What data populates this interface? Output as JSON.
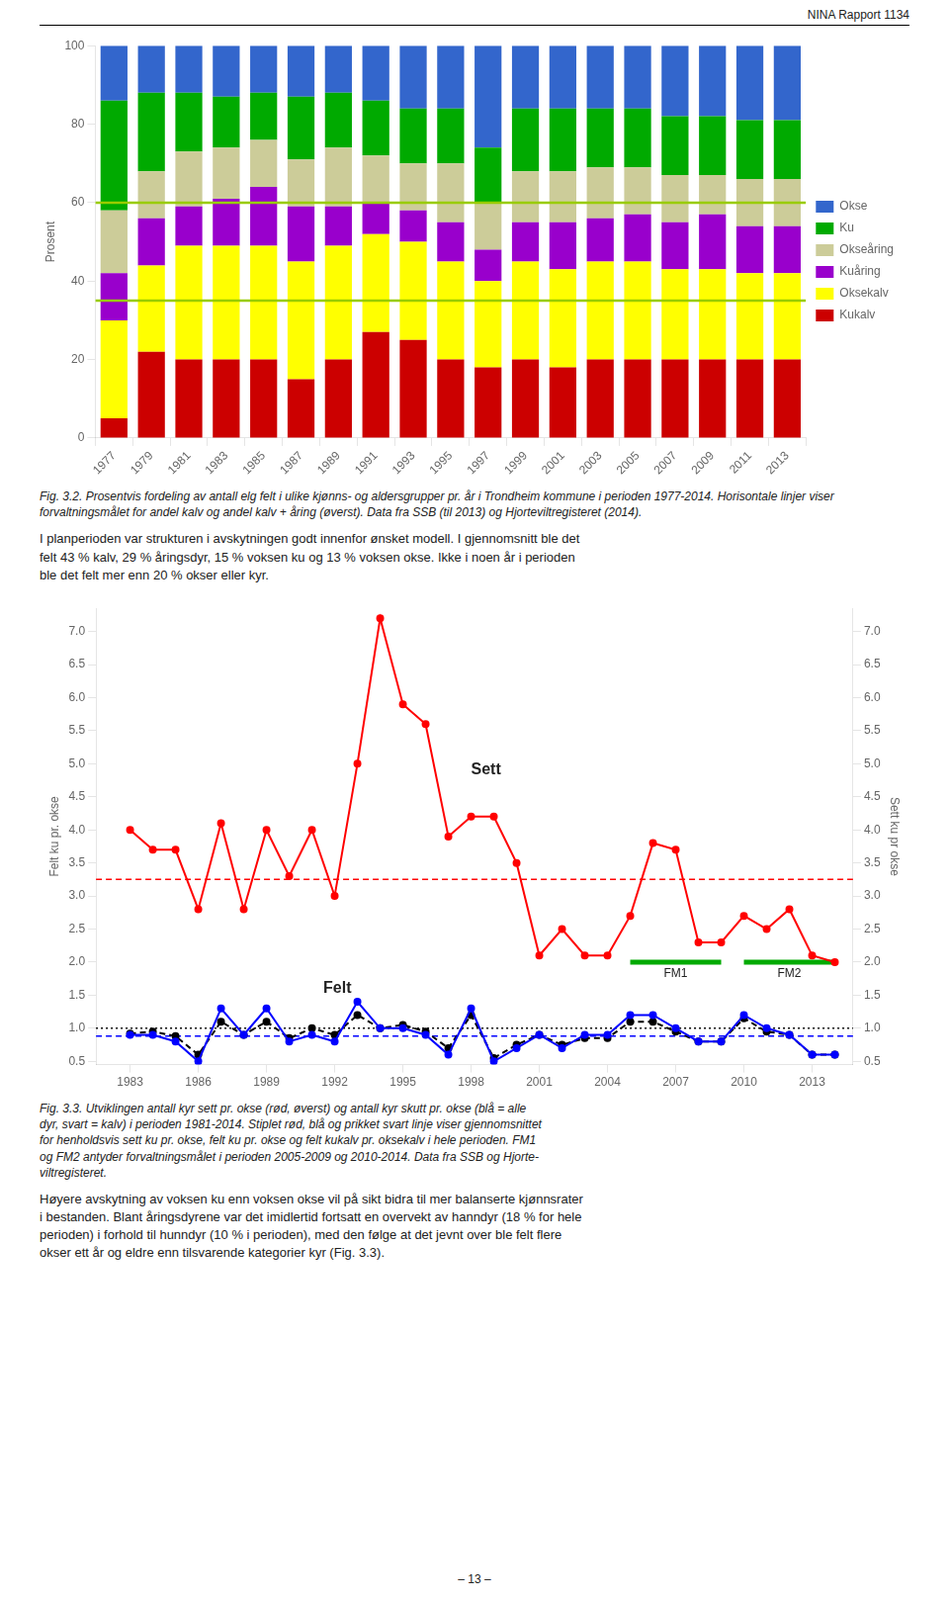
{
  "header": "NINA Rapport 1134",
  "chart_data": [
    {
      "type": "bar",
      "stacked": true,
      "categories": [
        "1977",
        "1979",
        "1981",
        "1983",
        "1985",
        "1987",
        "1989",
        "1991",
        "1993",
        "1995",
        "1997",
        "1999",
        "2001",
        "2003",
        "2005",
        "2007",
        "2009",
        "2011",
        "2013"
      ],
      "series": [
        {
          "name": "Kukalv",
          "color": "#cc0000",
          "values": [
            5,
            22,
            20,
            20,
            20,
            15,
            20,
            27,
            25,
            20,
            18,
            20,
            18,
            20,
            20,
            20,
            20,
            20,
            20
          ]
        },
        {
          "name": "Oksekalv",
          "color": "#ffff00",
          "values": [
            25,
            22,
            29,
            29,
            29,
            30,
            29,
            25,
            25,
            25,
            22,
            25,
            25,
            25,
            25,
            23,
            23,
            22,
            22
          ]
        },
        {
          "name": "Kuåring",
          "color": "#9900cc",
          "values": [
            12,
            12,
            10,
            12,
            15,
            14,
            10,
            8,
            8,
            10,
            8,
            10,
            12,
            11,
            12,
            12,
            14,
            12,
            12
          ]
        },
        {
          "name": "Okseåring",
          "color": "#cccc99",
          "values": [
            16,
            12,
            14,
            13,
            12,
            12,
            15,
            12,
            12,
            15,
            12,
            13,
            13,
            13,
            12,
            12,
            10,
            12,
            12
          ]
        },
        {
          "name": "Ku",
          "color": "#00aa00",
          "values": [
            28,
            20,
            15,
            13,
            12,
            16,
            14,
            14,
            14,
            14,
            14,
            16,
            16,
            15,
            15,
            15,
            15,
            15,
            15
          ]
        },
        {
          "name": "Okse",
          "color": "#3366cc",
          "values": [
            14,
            12,
            12,
            13,
            12,
            13,
            12,
            14,
            16,
            16,
            26,
            16,
            16,
            16,
            16,
            18,
            18,
            19,
            19
          ]
        }
      ],
      "ylim": [
        0,
        100
      ],
      "yticks": [
        0,
        20,
        40,
        60,
        80,
        100
      ],
      "y_label": "Prosent",
      "reference_lines": [
        {
          "value": 60,
          "color": "#99cc00"
        },
        {
          "value": 35,
          "color": "#99cc00"
        }
      ],
      "legend": "right",
      "grid": false,
      "caption": "Fig. 3.2. Prosentvis fordeling av antall elg felt i ulike kjønns- og aldersgrupper pr. år i Trondheim kommune i perioden 1977-2014. Horisontale linjer viser forvaltningsmålet for andel kalv og andel kalv + åring (øverst). Data fra SSB (til 2013) og Hjorteviltregisteret (2014).",
      "paragraph": "I planperioden var strukturen i avskytningen godt innenfor ønsket modell. I gjennomsnitt ble det\nfelt 43 % kalv, 29 % åringsdyr, 15 % voksen ku og 13 % voksen okse. Ikke i noen år i perioden\nble det felt mer enn 20 % okser eller kyr."
    },
    {
      "type": "line",
      "x": [
        1983,
        1984,
        1985,
        1986,
        1987,
        1988,
        1989,
        1990,
        1991,
        1992,
        1993,
        1994,
        1995,
        1996,
        1997,
        1998,
        1999,
        2000,
        2001,
        2002,
        2003,
        2004,
        2005,
        2006,
        2007,
        2008,
        2009,
        2010,
        2011,
        2012,
        2013,
        2014
      ],
      "series": [
        {
          "color": "red",
          "marker": "circle",
          "line_style": "solid",
          "values": [
            4.0,
            3.7,
            3.7,
            2.8,
            4.1,
            2.8,
            4.0,
            3.3,
            4.0,
            3.0,
            5.0,
            7.2,
            5.9,
            5.6,
            3.9,
            4.2,
            4.2,
            3.5,
            2.1,
            2.5,
            2.1,
            2.1,
            2.7,
            3.8,
            3.7,
            2.3,
            2.3,
            2.7,
            2.5,
            2.8,
            2.1,
            2.0
          ]
        },
        {
          "color": "blue",
          "marker": "circle",
          "line_style": "solid",
          "values": [
            0.9,
            0.9,
            0.8,
            0.5,
            1.3,
            0.9,
            1.3,
            0.8,
            0.9,
            0.8,
            1.4,
            1.0,
            1.0,
            0.9,
            0.6,
            1.3,
            0.5,
            0.7,
            0.9,
            0.7,
            0.9,
            0.9,
            1.2,
            1.2,
            1.0,
            0.8,
            0.8,
            1.2,
            1.0,
            0.9,
            0.6,
            0.6
          ]
        },
        {
          "color": "black",
          "marker": "circle",
          "line_style": "dashed",
          "values": [
            0.92,
            0.95,
            0.88,
            0.6,
            1.1,
            0.9,
            1.1,
            0.85,
            1.0,
            0.9,
            1.2,
            1.0,
            1.05,
            0.95,
            0.7,
            1.2,
            0.55,
            0.75,
            0.9,
            0.75,
            0.85,
            0.85,
            1.1,
            1.1,
            0.95,
            0.8,
            0.8,
            1.15,
            0.95,
            0.9,
            0.6,
            0.6
          ]
        }
      ],
      "xlim": [
        1981.5,
        2014.8
      ],
      "xticks": [
        1983,
        1986,
        1989,
        1992,
        1995,
        1998,
        2001,
        2004,
        2007,
        2010,
        2013
      ],
      "ylim": [
        0.45,
        7.35
      ],
      "yticks": [
        0.5,
        {
          "value": 1,
          "label": "1.0"
        },
        1.5,
        {
          "value": 2,
          "label": "2.0"
        },
        2.5,
        {
          "value": 3,
          "label": "3.0"
        },
        3.5,
        {
          "value": 4,
          "label": "4.0"
        },
        4.5,
        {
          "value": 5,
          "label": "5.0"
        },
        5.5,
        {
          "value": 6,
          "label": "6.0"
        },
        6.5,
        {
          "value": 7,
          "label": "7.0"
        }
      ],
      "y2lim": [
        0.45,
        7.35
      ],
      "y2ticks": [
        0.5,
        {
          "value": 1,
          "label": "1.0"
        },
        1.5,
        {
          "value": 2,
          "label": "2.0"
        },
        2.5,
        {
          "value": 3,
          "label": "3.0"
        },
        3.5,
        {
          "value": 4,
          "label": "4.0"
        },
        4.5,
        {
          "value": 5,
          "label": "5.0"
        },
        5.5,
        {
          "value": 6,
          "label": "6.0"
        },
        6.5,
        {
          "value": 7,
          "label": "7.0"
        }
      ],
      "y_label": "Felt ku pr. okse",
      "y2_label": "Sett ku pr okse",
      "reference_lines": [
        {
          "value": 3.25,
          "color": "red",
          "line_style": "dashed"
        },
        {
          "value": 1.0,
          "color": "black",
          "line_style": "dotted"
        },
        {
          "value": 0.88,
          "color": "blue",
          "line_style": "dashed"
        }
      ],
      "segments": [
        {
          "label": "FM1",
          "x": [
            2005,
            2009
          ],
          "y": 2.0,
          "color": "#00aa00"
        },
        {
          "label": "FM2",
          "x": [
            2010,
            2014
          ],
          "y": 2.0,
          "color": "#00aa00"
        }
      ],
      "annotations": [
        {
          "text": "Sett",
          "x": 1998,
          "y": 4.9
        },
        {
          "text": "Felt",
          "x": 1991.5,
          "y": 1.6
        }
      ],
      "grid": false,
      "caption": "Fig. 3.3. Utviklingen antall kyr sett pr. okse (rød, øverst) og antall kyr skutt pr. okse (blå = alle\ndyr, svart = kalv) i perioden 1981-2014. Stiplet rød, blå og prikket svart linje viser gjennomsnittet\nfor henholdsvis sett ku pr. okse, felt ku pr. okse og felt kukalv pr. oksekalv i hele perioden. FM1\nog FM2 antyder forvaltningsmålet i perioden 2005-2009 og 2010-2014. Data fra SSB og Hjorte-\nviltregisteret.",
      "paragraph": "Høyere avskytning av voksen ku enn voksen okse vil på sikt bidra til mer balanserte kjønnsrater\ni bestanden. Blant åringsdyrene var det imidlertid fortsatt en overvekt av hanndyr (18 % for hele\nperioden) i forhold til hunndyr (10 % i perioden), med den følge at det jevnt over ble felt flere\nokser ett år og eldre enn tilsvarende kategorier kyr (Fig. 3.3)."
    }
  ],
  "page_number": "– 13 –"
}
